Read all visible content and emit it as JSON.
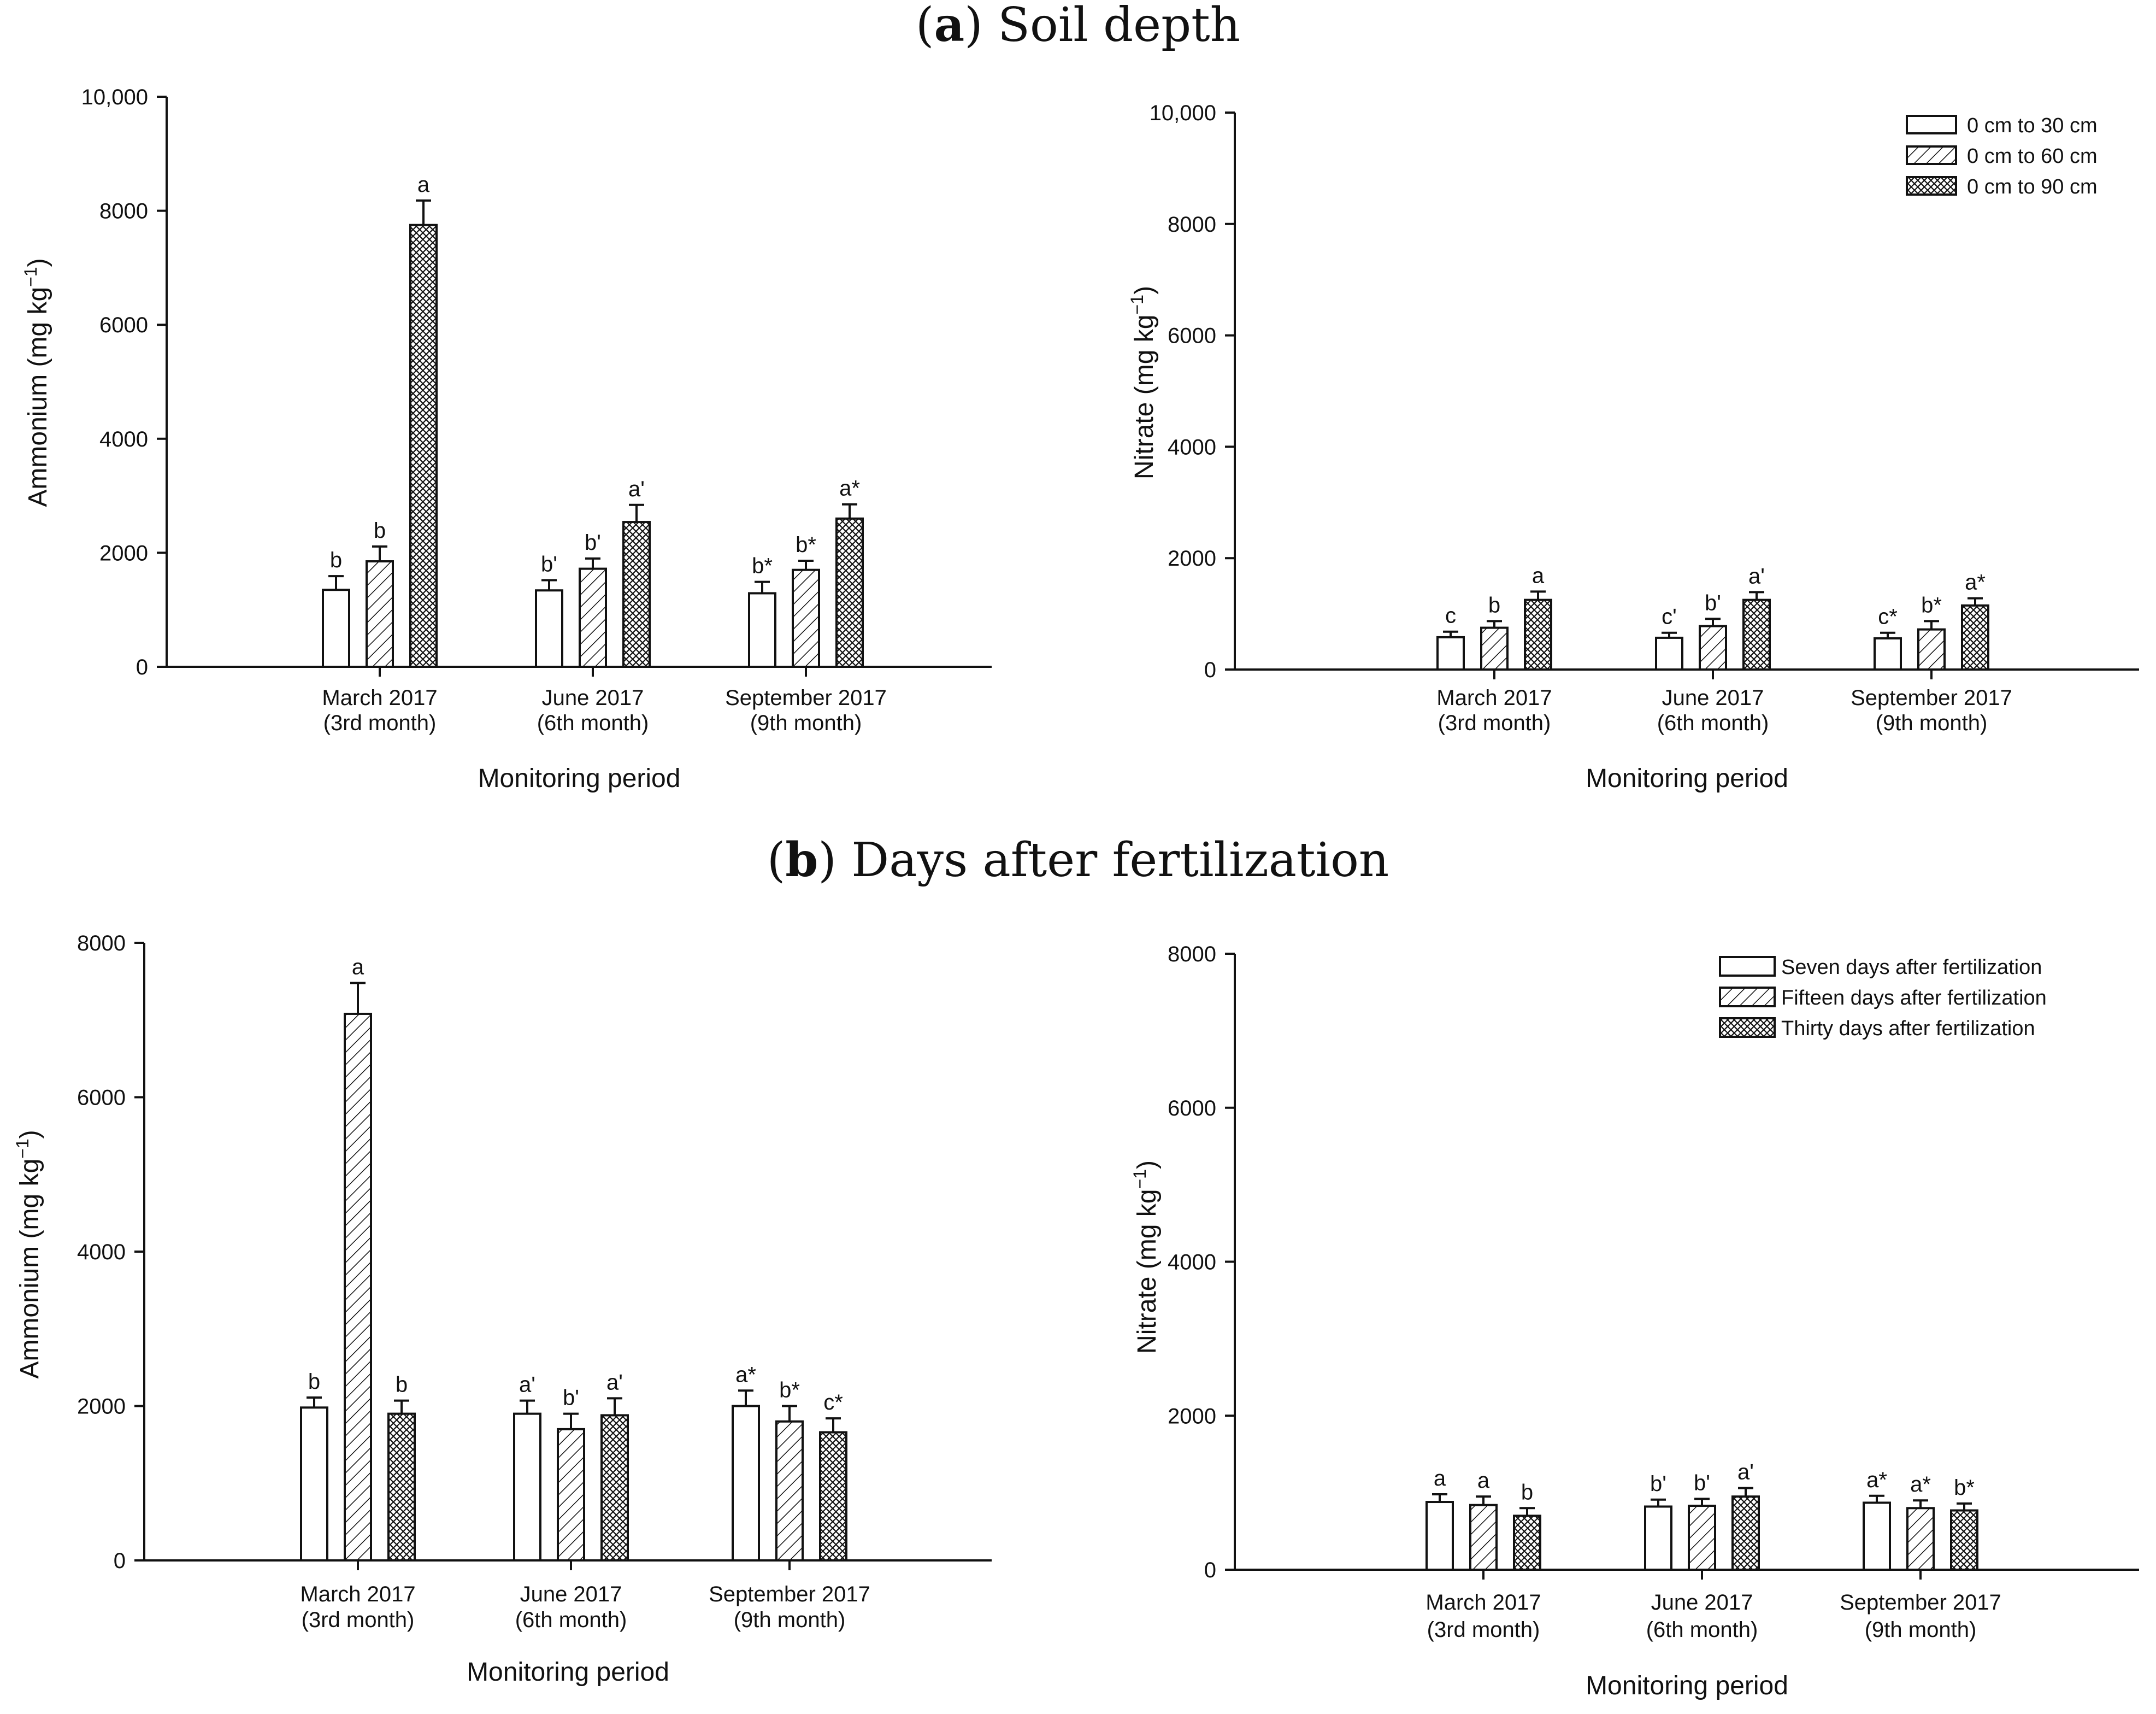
{
  "sections": [
    {
      "label": "a",
      "title": "Soil depth"
    },
    {
      "label": "b",
      "title": "Days after fertilization"
    }
  ],
  "chart_data": [
    {
      "type": "bar",
      "section": "a",
      "ylabel": "Ammonium (mg kg",
      "ylabel_sup": "−1",
      "ylabel_end": ")",
      "xlabel": "Monitoring period",
      "ylim": [
        0,
        10000
      ],
      "yticks": [
        0,
        2000,
        4000,
        6000,
        8000,
        10000
      ],
      "ytick_labels": [
        "0",
        "2000",
        "4000",
        "6000",
        "8000",
        "10,000"
      ],
      "categories": [
        [
          "March 2017",
          "(3rd month)"
        ],
        [
          "June 2017",
          "(6th month)"
        ],
        [
          "September 2017",
          "(9th month)"
        ]
      ],
      "series": [
        {
          "name": "0 cm to 30 cm",
          "pattern": "none",
          "values": [
            1350,
            1340,
            1290
          ],
          "errors": [
            240,
            180,
            200
          ],
          "labels": [
            "b",
            "b'",
            "b*"
          ]
        },
        {
          "name": "0 cm to 60 cm",
          "pattern": "hatch",
          "values": [
            1850,
            1720,
            1700
          ],
          "errors": [
            260,
            180,
            160
          ],
          "labels": [
            "b",
            "b'",
            "b*"
          ]
        },
        {
          "name": "0 cm to 90 cm",
          "pattern": "cross",
          "values": [
            7750,
            2540,
            2600
          ],
          "errors": [
            430,
            300,
            250
          ],
          "labels": [
            "a",
            "a'",
            "a*"
          ]
        }
      ]
    },
    {
      "type": "bar",
      "section": "a",
      "ylabel": "Nitrate (mg kg",
      "ylabel_sup": "−1",
      "ylabel_end": ")",
      "xlabel": "Monitoring period",
      "ylim": [
        0,
        10000
      ],
      "yticks": [
        0,
        2000,
        4000,
        6000,
        8000,
        10000
      ],
      "ytick_labels": [
        "0",
        "2000",
        "4000",
        "6000",
        "8000",
        "10,000"
      ],
      "legend": "top-right",
      "categories": [
        [
          "March 2017",
          "(3rd month)"
        ],
        [
          "June 2017",
          "(6th month)"
        ],
        [
          "September 2017",
          "(9th month)"
        ]
      ],
      "series": [
        {
          "name": "0 cm to 30 cm",
          "pattern": "none",
          "values": [
            580,
            570,
            560
          ],
          "errors": [
            100,
            90,
            100
          ],
          "labels": [
            "c",
            "c'",
            "c*"
          ]
        },
        {
          "name": "0 cm to 60 cm",
          "pattern": "hatch",
          "values": [
            750,
            780,
            720
          ],
          "errors": [
            120,
            130,
            150
          ],
          "labels": [
            "b",
            "b'",
            "b*"
          ]
        },
        {
          "name": "0 cm to 90 cm",
          "pattern": "cross",
          "values": [
            1250,
            1250,
            1150
          ],
          "errors": [
            150,
            140,
            130
          ],
          "labels": [
            "a",
            "a'",
            "a*"
          ]
        }
      ]
    },
    {
      "type": "bar",
      "section": "b",
      "ylabel": "Ammonium (mg kg",
      "ylabel_sup": "−1",
      "ylabel_end": ")",
      "xlabel": "Monitoring period",
      "ylim": [
        0,
        8000
      ],
      "yticks": [
        0,
        2000,
        4000,
        6000,
        8000
      ],
      "ytick_labels": [
        "0",
        "2000",
        "4000",
        "6000",
        "8000"
      ],
      "categories": [
        [
          "March 2017",
          "(3rd month)"
        ],
        [
          "June 2017",
          "(6th month)"
        ],
        [
          "September 2017",
          "(9th month)"
        ]
      ],
      "series": [
        {
          "name": "Seven days after fertilization",
          "pattern": "none",
          "values": [
            1980,
            1900,
            2000
          ],
          "errors": [
            130,
            170,
            200
          ],
          "labels": [
            "b",
            "a'",
            "a*"
          ]
        },
        {
          "name": "Fifteen days after fertilization",
          "pattern": "hatch",
          "values": [
            7080,
            1700,
            1800
          ],
          "errors": [
            400,
            200,
            200
          ],
          "labels": [
            "a",
            "b'",
            "b*"
          ]
        },
        {
          "name": "Thirty days after fertilization",
          "pattern": "cross",
          "values": [
            1900,
            1880,
            1660
          ],
          "errors": [
            170,
            220,
            180
          ],
          "labels": [
            "b",
            "a'",
            "c*"
          ]
        }
      ]
    },
    {
      "type": "bar",
      "section": "b",
      "ylabel": "Nitrate (mg kg",
      "ylabel_sup": "−1",
      "ylabel_end": ")",
      "xlabel": "Monitoring period",
      "ylim": [
        0,
        8000
      ],
      "yticks": [
        0,
        2000,
        4000,
        6000,
        8000
      ],
      "ytick_labels": [
        "0",
        "2000",
        "4000",
        "6000",
        "8000"
      ],
      "legend": "top-right",
      "categories": [
        [
          "March 2017",
          "(3rd month)"
        ],
        [
          "June 2017",
          "(6th month)"
        ],
        [
          "September 2017",
          "(9th month)"
        ]
      ],
      "series": [
        {
          "name": "Seven days after fertilization",
          "pattern": "none",
          "values": [
            880,
            820,
            870
          ],
          "errors": [
            100,
            90,
            90
          ],
          "labels": [
            "a",
            "b'",
            "a*"
          ]
        },
        {
          "name": "Fifteen days after fertilization",
          "pattern": "hatch",
          "values": [
            840,
            830,
            800
          ],
          "errors": [
            110,
            90,
            100
          ],
          "labels": [
            "a",
            "b'",
            "a*"
          ]
        },
        {
          "name": "Thirty days after fertilization",
          "pattern": "cross",
          "values": [
            700,
            950,
            770
          ],
          "errors": [
            100,
            110,
            90
          ],
          "labels": [
            "b",
            "a'",
            "b*"
          ]
        }
      ]
    }
  ]
}
